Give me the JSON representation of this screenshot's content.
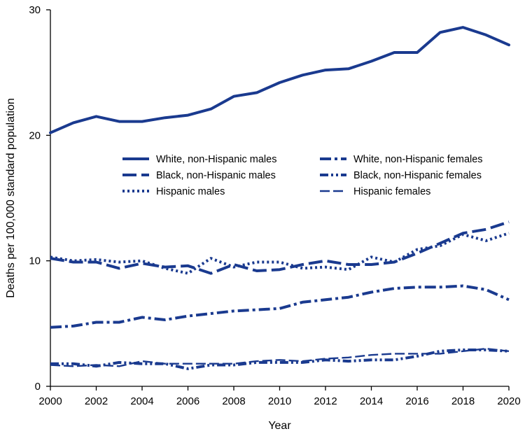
{
  "chart_data": {
    "type": "line",
    "title": "",
    "xlabel": "Year",
    "ylabel": "Deaths per 100,000 standard  population",
    "xlim": [
      2000,
      2020
    ],
    "ylim": [
      0,
      30
    ],
    "x_ticks": [
      2000,
      2002,
      2004,
      2006,
      2008,
      2010,
      2012,
      2014,
      2016,
      2018,
      2020
    ],
    "y_ticks": [
      0,
      10,
      20,
      30
    ],
    "grid": false,
    "legend_position": "center, two columns",
    "line_color": "#1a3a8f",
    "x": [
      2000,
      2001,
      2002,
      2003,
      2004,
      2005,
      2006,
      2007,
      2008,
      2009,
      2010,
      2011,
      2012,
      2013,
      2014,
      2015,
      2016,
      2017,
      2018,
      2019,
      2020
    ],
    "series": [
      {
        "name": "White, non-Hispanic males",
        "style": "solid",
        "values": [
          20.2,
          21.0,
          21.5,
          21.1,
          21.1,
          21.4,
          21.6,
          22.1,
          23.1,
          23.4,
          24.2,
          24.8,
          25.2,
          25.3,
          25.9,
          26.6,
          26.6,
          28.2,
          28.6,
          28.0,
          27.2
        ]
      },
      {
        "name": "White, non-Hispanic females",
        "style": "dash-dot",
        "values": [
          4.7,
          4.8,
          5.1,
          5.1,
          5.5,
          5.3,
          5.6,
          5.8,
          6.0,
          6.1,
          6.2,
          6.7,
          6.9,
          7.1,
          7.5,
          7.8,
          7.9,
          7.9,
          8.0,
          7.7,
          6.9
        ]
      },
      {
        "name": "Black, non-Hispanic males",
        "style": "long-dash",
        "values": [
          10.2,
          9.9,
          9.9,
          9.4,
          9.8,
          9.5,
          9.6,
          9.0,
          9.7,
          9.2,
          9.3,
          9.7,
          10.0,
          9.7,
          9.7,
          9.9,
          10.6,
          11.4,
          12.2,
          12.5,
          13.1
        ]
      },
      {
        "name": "Black, non-Hispanic females",
        "style": "dash-dot-dot",
        "values": [
          1.8,
          1.8,
          1.6,
          1.9,
          1.8,
          1.8,
          1.4,
          1.7,
          1.7,
          1.9,
          1.9,
          1.9,
          2.1,
          2.0,
          2.1,
          2.1,
          2.4,
          2.8,
          2.9,
          2.9,
          2.8
        ]
      },
      {
        "name": "Hispanic males",
        "style": "dotted",
        "values": [
          10.3,
          10.0,
          10.1,
          9.9,
          10.0,
          9.4,
          9.0,
          10.2,
          9.5,
          9.9,
          9.9,
          9.4,
          9.5,
          9.3,
          10.3,
          9.9,
          10.9,
          11.2,
          12.1,
          11.6,
          12.2
        ]
      },
      {
        "name": "Hispanic females",
        "style": "thin-dash",
        "values": [
          1.7,
          1.6,
          1.7,
          1.6,
          2.0,
          1.8,
          1.8,
          1.8,
          1.8,
          2.0,
          2.1,
          2.0,
          2.2,
          2.3,
          2.5,
          2.6,
          2.6,
          2.6,
          2.8,
          3.0,
          2.8
        ]
      }
    ]
  }
}
